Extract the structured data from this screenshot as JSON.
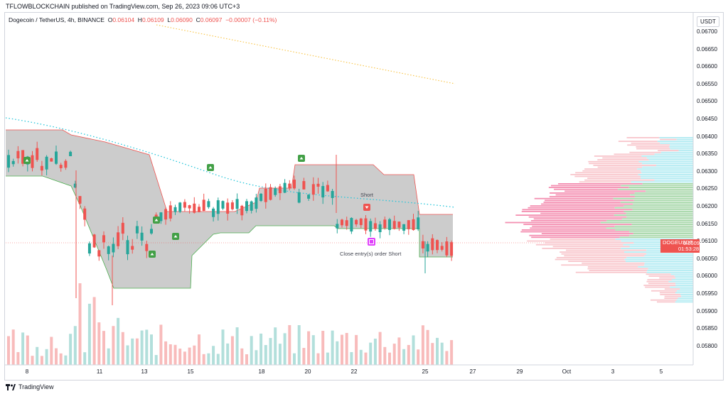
{
  "header": {
    "publisher_line": "TFLOWBLOCKCHAIN published on TradingView.com, Sep 26, 2023 09:06 UTC+3"
  },
  "legend": {
    "symbol": "Dogecoin / TetherUS, 4h, BINANCE",
    "o_label": "O",
    "o": "0.06104",
    "h_label": "H",
    "h": "0.06109",
    "l_label": "L",
    "l": "0.06090",
    "c_label": "C",
    "c": "0.06097",
    "change": "−0.00007 (−0.11%)"
  },
  "price_axis": {
    "currency": "USDT",
    "ticks": [
      "0.06700",
      "0.06650",
      "0.06600",
      "0.06550",
      "0.06500",
      "0.06450",
      "0.06400",
      "0.06350",
      "0.06300",
      "0.06250",
      "0.06200",
      "0.06150",
      "0.06100",
      "0.06050",
      "0.06000",
      "0.05950",
      "0.05900",
      "0.05850",
      "0.05800"
    ],
    "last_symbol": "DOGEUSDT",
    "last_price": "0.06097",
    "countdown": "01:53:28"
  },
  "time_axis": {
    "ticks": [
      "8",
      "11",
      "13",
      "15",
      "18",
      "20",
      "22",
      "25",
      "27",
      "29",
      "Oct",
      "3",
      "5"
    ]
  },
  "annotations": {
    "short_label": "Short",
    "close_label": "Close entry(s) order Short"
  },
  "footer": {
    "brand": "TradingView"
  },
  "colors": {
    "up": "#26a69a",
    "down": "#ef5350",
    "band_fill": "#c8c8c8",
    "ma_dots": "#26c6da",
    "trend_dots": "#ffd54f"
  },
  "chart_data": {
    "type": "candlestick",
    "title": "Dogecoin / TetherUS, 4h, BINANCE",
    "ylim": [
      0.0577,
      0.0672
    ],
    "last_close": 0.06097,
    "time_labels": [
      "8",
      "11",
      "13",
      "15",
      "18",
      "20",
      "22",
      "25",
      "27",
      "29",
      "Oct",
      "3",
      "5"
    ]
  }
}
